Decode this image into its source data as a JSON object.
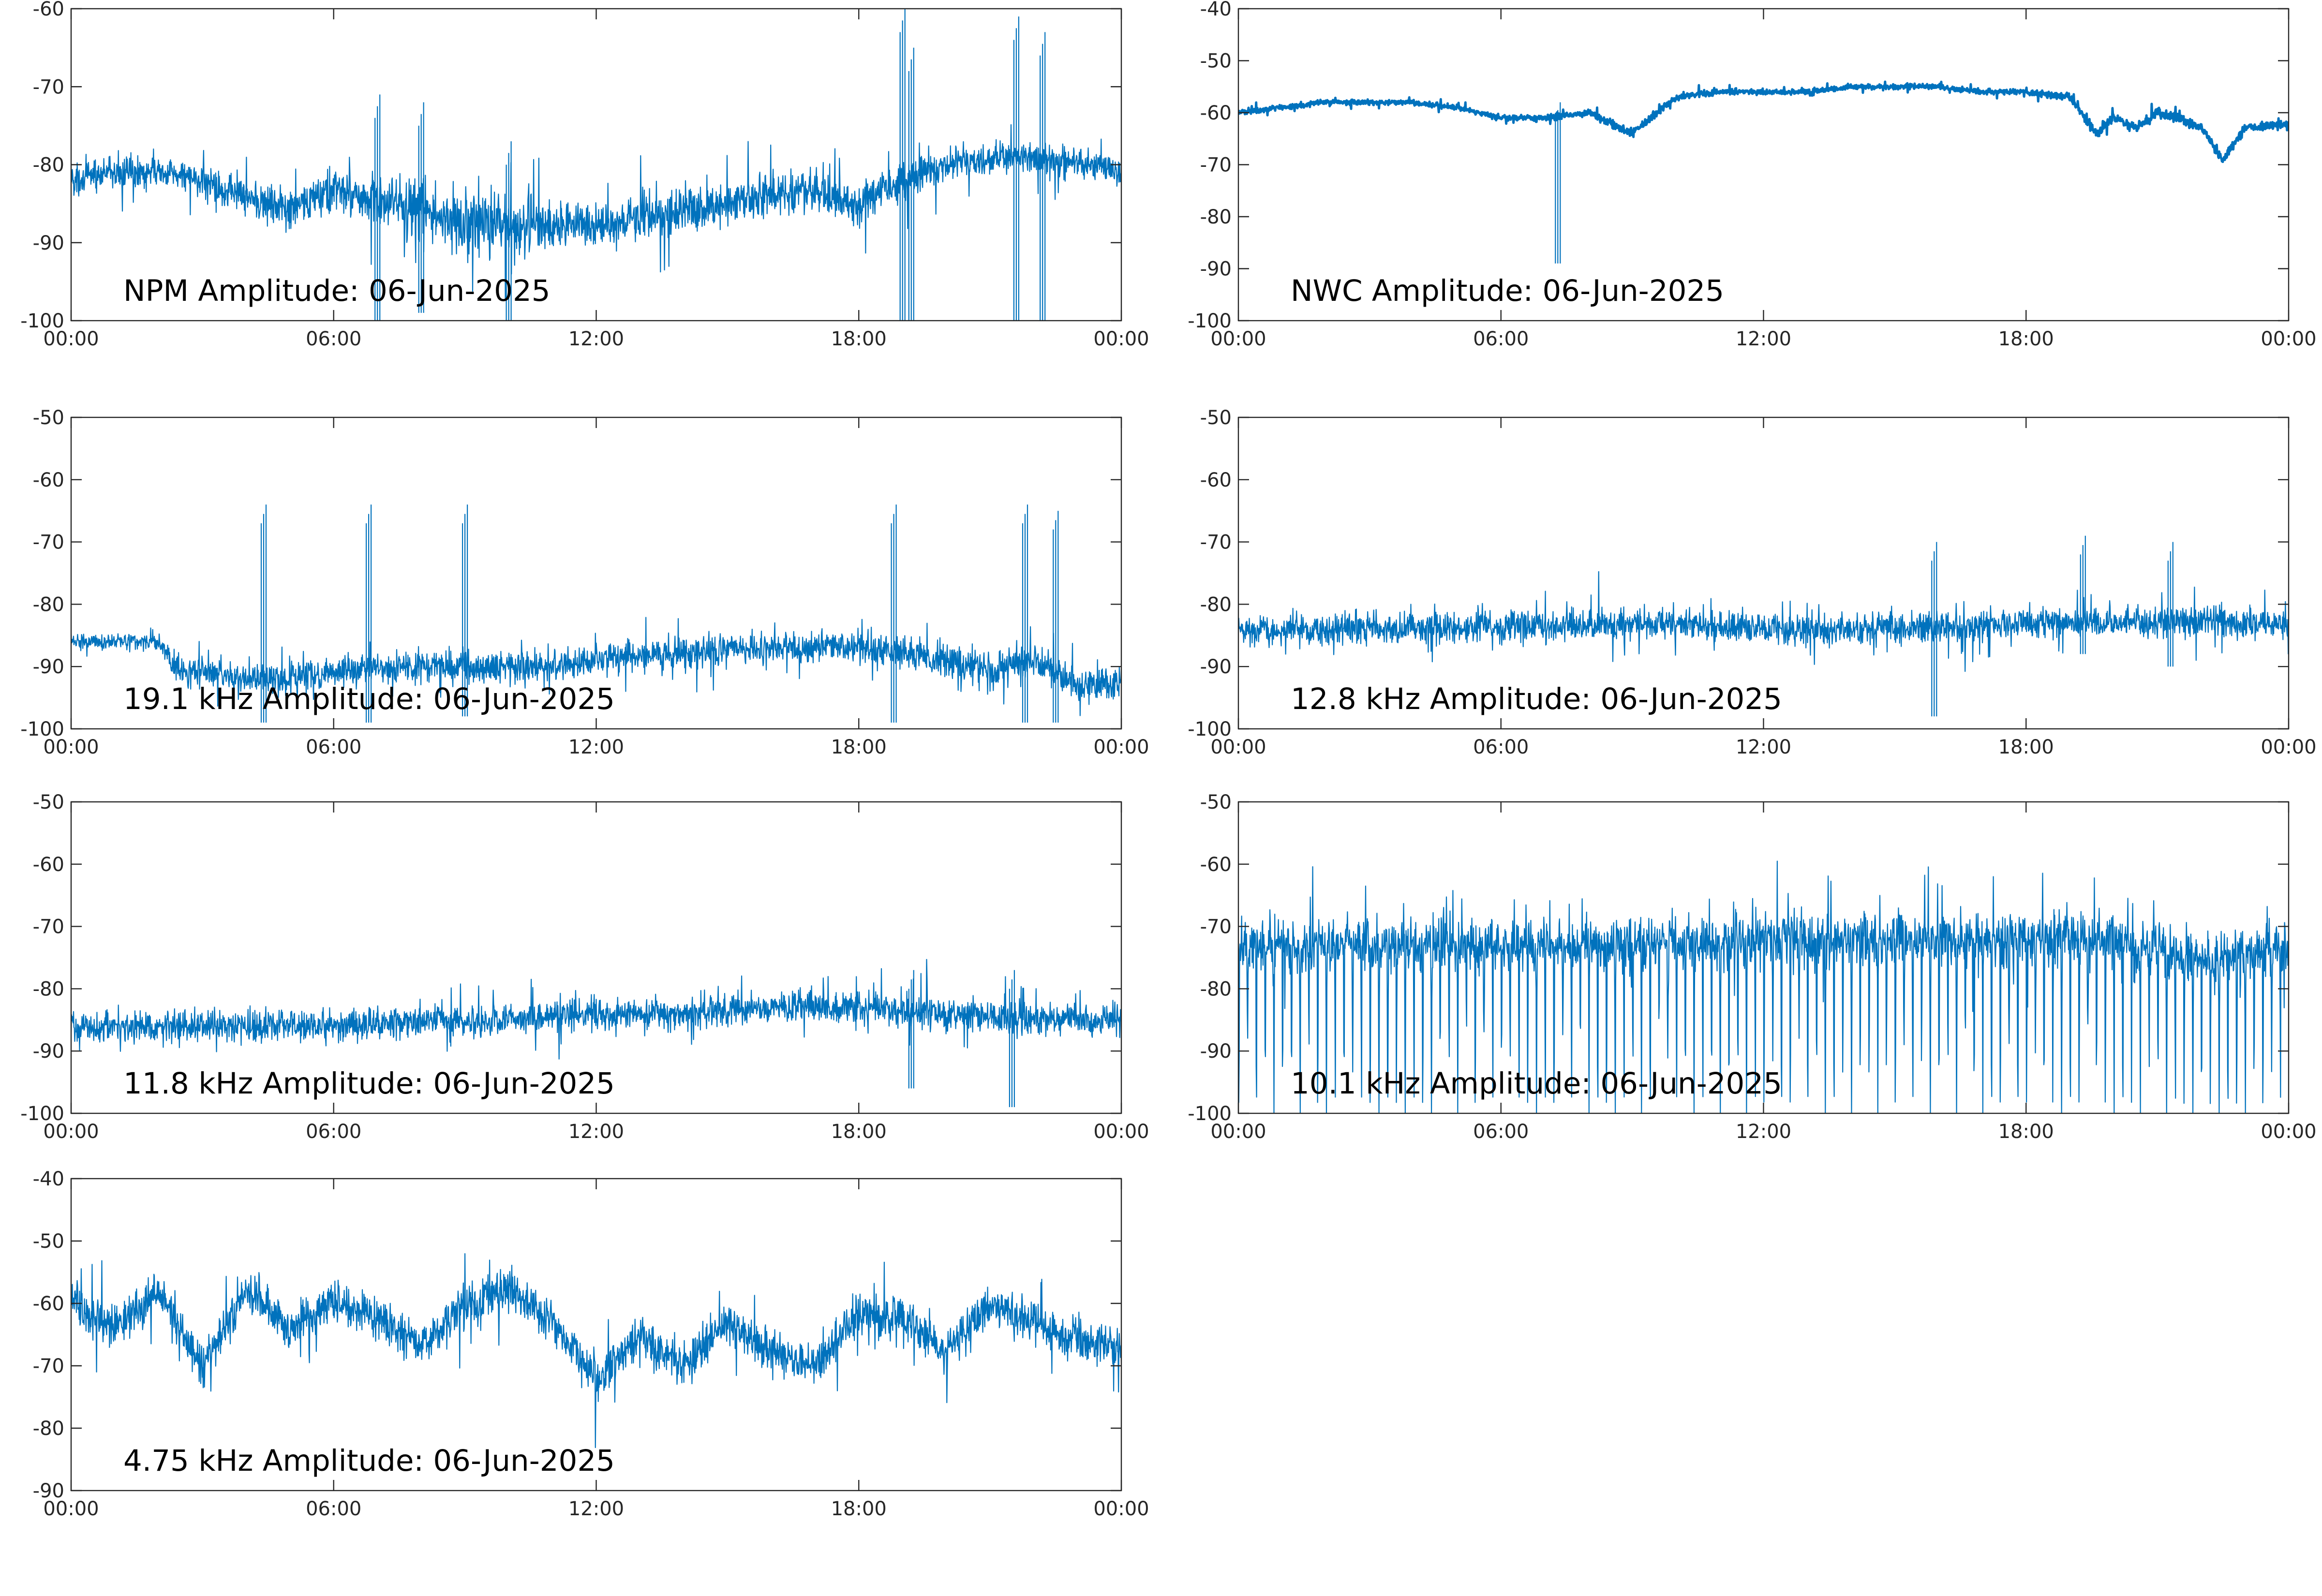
{
  "chart_data": [
    {
      "type": "line",
      "title": "NPM Amplitude: 06-Jun-2025",
      "ylim": [
        -100,
        -60
      ],
      "yticks": [
        -100,
        -90,
        -80,
        -70,
        -60
      ],
      "ytick_labels": [
        "-100",
        "-90",
        "-80",
        "-70",
        "-60"
      ],
      "xlim": [
        "00:00",
        "24:00"
      ],
      "xtick_labels": [
        "00:00",
        "06:00",
        "12:00",
        "18:00",
        "00:00"
      ],
      "grid": false,
      "series_color": "#0072BD",
      "series": [
        {
          "x": [
            "00:00",
            "01:00",
            "02:00",
            "03:00",
            "04:00",
            "05:00",
            "06:00",
            "07:00",
            "08:00",
            "09:00",
            "10:00",
            "11:00",
            "12:00",
            "13:00",
            "14:00",
            "15:00",
            "16:00",
            "17:00",
            "18:00",
            "19:00",
            "20:00",
            "21:00",
            "22:00",
            "23:00",
            "24:00"
          ],
          "y": [
            -82,
            -81,
            -81,
            -82,
            -84,
            -86,
            -83,
            -85,
            -86,
            -87,
            -88,
            -88,
            -88,
            -87,
            -86,
            -85,
            -84,
            -83,
            -85,
            -82,
            -80,
            -79,
            -79,
            -80,
            -81
          ],
          "spread": [
            2.5,
            2.5,
            2.5,
            2.5,
            3,
            3,
            3.5,
            4,
            4.5,
            4.5,
            4.5,
            4,
            3.5,
            3.5,
            3.5,
            3.5,
            3,
            3,
            3.5,
            3,
            2.5,
            2.5,
            2.5,
            2.5,
            2.5
          ]
        }
      ],
      "spikes": [
        {
          "x": "07:00",
          "low": -100,
          "high": -74
        },
        {
          "x": "08:00",
          "low": -99,
          "high": -75
        },
        {
          "x": "10:00",
          "low": -100,
          "high": -80
        },
        {
          "x": "19:00",
          "low": -100,
          "high": -63
        },
        {
          "x": "19:12",
          "low": -100,
          "high": -68
        },
        {
          "x": "21:36",
          "low": -100,
          "high": -64
        },
        {
          "x": "22:12",
          "low": -100,
          "high": -66
        }
      ]
    },
    {
      "type": "line",
      "title": "NWC Amplitude: 06-Jun-2025",
      "ylim": [
        -100,
        -40
      ],
      "yticks": [
        -100,
        -90,
        -80,
        -70,
        -60,
        -50,
        -40
      ],
      "ytick_labels": [
        "-100",
        "-90",
        "-80",
        "-70",
        "-60",
        "-50",
        "-40"
      ],
      "xlim": [
        "00:00",
        "24:00"
      ],
      "xtick_labels": [
        "00:00",
        "06:00",
        "12:00",
        "18:00",
        "00:00"
      ],
      "grid": false,
      "series_color": "#0072BD",
      "series": [
        {
          "x": [
            "00:00",
            "01:00",
            "02:00",
            "03:00",
            "04:00",
            "05:00",
            "06:00",
            "07:00",
            "08:00",
            "09:00",
            "10:00",
            "11:00",
            "12:00",
            "13:00",
            "14:00",
            "15:00",
            "16:00",
            "17:00",
            "18:00",
            "19:00",
            "19:36",
            "20:00",
            "20:30",
            "21:00",
            "21:30",
            "22:00",
            "22:30",
            "23:00",
            "24:00"
          ],
          "y": [
            -60,
            -59,
            -58,
            -58,
            -58,
            -59,
            -61,
            -61,
            -60,
            -64,
            -57,
            -56,
            -56,
            -56,
            -55,
            -55,
            -55,
            -56,
            -56,
            -57,
            -64,
            -61,
            -63,
            -60,
            -61,
            -63,
            -69,
            -63,
            -62
          ],
          "spread": [
            0.6,
            0.6,
            0.6,
            0.6,
            0.6,
            0.6,
            0.7,
            0.7,
            0.8,
            1,
            0.7,
            0.6,
            0.6,
            0.6,
            0.6,
            0.6,
            0.6,
            0.6,
            0.6,
            0.8,
            1.2,
            1.2,
            1.2,
            1.2,
            1.2,
            1.2,
            1.2,
            1,
            0.8
          ]
        }
      ],
      "spikes": [
        {
          "x": "07:18",
          "low": -89,
          "high": -61
        }
      ]
    },
    {
      "type": "line",
      "title": "19.1 kHz Amplitude: 06-Jun-2025",
      "ylim": [
        -100,
        -50
      ],
      "yticks": [
        -100,
        -90,
        -80,
        -70,
        -60,
        -50
      ],
      "ytick_labels": [
        "-100",
        "-90",
        "-80",
        "-70",
        "-60",
        "-50"
      ],
      "xlim": [
        "00:00",
        "24:00"
      ],
      "xtick_labels": [
        "00:00",
        "06:00",
        "12:00",
        "18:00",
        "00:00"
      ],
      "grid": false,
      "series_color": "#0072BD",
      "series": [
        {
          "x": [
            "00:00",
            "01:00",
            "02:00",
            "02:30",
            "03:00",
            "04:00",
            "05:00",
            "06:00",
            "07:00",
            "08:00",
            "09:00",
            "10:00",
            "11:00",
            "12:00",
            "13:00",
            "14:00",
            "15:00",
            "16:00",
            "17:00",
            "18:00",
            "19:00",
            "20:00",
            "21:00",
            "22:00",
            "23:00",
            "24:00"
          ],
          "y": [
            -86,
            -86,
            -86,
            -91,
            -91,
            -92,
            -92,
            -91,
            -90,
            -90,
            -90,
            -90,
            -90,
            -89,
            -88,
            -88,
            -87,
            -87,
            -87,
            -87,
            -88,
            -89,
            -91,
            -89,
            -93,
            -93
          ],
          "spread": [
            1.5,
            1.5,
            1.5,
            3,
            3,
            3,
            3,
            3,
            3,
            3,
            3,
            3,
            3,
            3,
            3,
            3,
            3,
            3,
            3,
            3,
            3.5,
            3.5,
            3.5,
            3.5,
            3.5,
            3.5
          ]
        }
      ],
      "spikes": [
        {
          "x": "04:24",
          "low": -99,
          "high": -67
        },
        {
          "x": "06:48",
          "low": -99,
          "high": -67
        },
        {
          "x": "09:00",
          "low": -98,
          "high": -67
        },
        {
          "x": "18:48",
          "low": -99,
          "high": -67
        },
        {
          "x": "21:48",
          "low": -99,
          "high": -67
        },
        {
          "x": "22:30",
          "low": -99,
          "high": -68
        }
      ]
    },
    {
      "type": "line",
      "title": "12.8 kHz Amplitude: 06-Jun-2025",
      "ylim": [
        -100,
        -50
      ],
      "yticks": [
        -100,
        -90,
        -80,
        -70,
        -60,
        -50
      ],
      "ytick_labels": [
        "-100",
        "-90",
        "-80",
        "-70",
        "-60",
        "-50"
      ],
      "xlim": [
        "00:00",
        "24:00"
      ],
      "xtick_labels": [
        "00:00",
        "06:00",
        "12:00",
        "18:00",
        "00:00"
      ],
      "grid": false,
      "series_color": "#0072BD",
      "series": [
        {
          "x": [
            "00:00",
            "03:00",
            "06:00",
            "09:00",
            "12:00",
            "15:00",
            "18:00",
            "21:00",
            "24:00"
          ],
          "y": [
            -84,
            -84,
            -84,
            -83,
            -84,
            -84,
            -83,
            -83,
            -83
          ],
          "spread": [
            3,
            3,
            3,
            3,
            3,
            3,
            3,
            3,
            3
          ]
        }
      ],
      "spikes": [
        {
          "x": "15:54",
          "low": -98,
          "high": -73
        },
        {
          "x": "19:18",
          "low": -88,
          "high": -72
        },
        {
          "x": "21:18",
          "low": -90,
          "high": -73
        }
      ]
    },
    {
      "type": "line",
      "title": "11.8 kHz Amplitude: 06-Jun-2025",
      "ylim": [
        -100,
        -50
      ],
      "yticks": [
        -100,
        -90,
        -80,
        -70,
        -60,
        -50
      ],
      "ytick_labels": [
        "-100",
        "-90",
        "-80",
        "-70",
        "-60",
        "-50"
      ],
      "xlim": [
        "00:00",
        "24:00"
      ],
      "xtick_labels": [
        "00:00",
        "06:00",
        "12:00",
        "18:00",
        "00:00"
      ],
      "grid": false,
      "series_color": "#0072BD",
      "series": [
        {
          "x": [
            "00:00",
            "02:00",
            "04:00",
            "06:00",
            "08:00",
            "10:00",
            "12:00",
            "14:00",
            "16:00",
            "18:00",
            "20:00",
            "22:00",
            "24:00"
          ],
          "y": [
            -86,
            -86,
            -86,
            -86,
            -85,
            -85,
            -84,
            -84,
            -83,
            -83,
            -84,
            -85,
            -85
          ],
          "spread": [
            3,
            3,
            3,
            3,
            3,
            3,
            3,
            3,
            3,
            3,
            3,
            3,
            3
          ]
        }
      ],
      "spikes": [
        {
          "x": "19:12",
          "low": -96,
          "high": -80
        },
        {
          "x": "21:30",
          "low": -99,
          "high": -80
        }
      ]
    },
    {
      "type": "line",
      "title": "10.1 kHz Amplitude: 06-Jun-2025",
      "ylim": [
        -100,
        -50
      ],
      "yticks": [
        -100,
        -90,
        -80,
        -70,
        -60,
        -50
      ],
      "ytick_labels": [
        "-100",
        "-90",
        "-80",
        "-70",
        "-60",
        "-50"
      ],
      "xlim": [
        "00:00",
        "24:00"
      ],
      "xtick_labels": [
        "00:00",
        "06:00",
        "12:00",
        "18:00",
        "00:00"
      ],
      "grid": false,
      "series_color": "#0072BD",
      "series": [
        {
          "x": [
            "00:00",
            "04:00",
            "08:00",
            "12:00",
            "16:00",
            "20:00",
            "22:00",
            "24:00"
          ],
          "y": [
            -73,
            -73,
            -73,
            -72,
            -72,
            -72,
            -76,
            -73
          ],
          "spread": [
            5,
            5,
            5,
            5,
            5,
            5,
            5,
            5
          ]
        }
      ],
      "dips": {
        "period_minutes": 12,
        "low": -100,
        "note_low": -95
      }
    },
    {
      "type": "line",
      "title": "4.75 kHz Amplitude: 06-Jun-2025",
      "ylim": [
        -90,
        -40
      ],
      "yticks": [
        -90,
        -80,
        -70,
        -60,
        -50,
        -40
      ],
      "ytick_labels": [
        "-90",
        "-80",
        "-70",
        "-60",
        "-50",
        "-40"
      ],
      "xlim": [
        "00:00",
        "24:00"
      ],
      "xtick_labels": [
        "00:00",
        "06:00",
        "12:00",
        "18:00",
        "00:00"
      ],
      "grid": false,
      "series_color": "#0072BD",
      "series": [
        {
          "x": [
            "00:00",
            "01:00",
            "02:00",
            "03:00",
            "04:00",
            "05:00",
            "06:00",
            "07:00",
            "08:00",
            "09:00",
            "10:00",
            "11:00",
            "12:00",
            "13:00",
            "14:00",
            "15:00",
            "16:00",
            "17:00",
            "18:00",
            "19:00",
            "20:00",
            "21:00",
            "22:00",
            "23:00",
            "24:00"
          ],
          "y": [
            -60,
            -64,
            -58,
            -70,
            -58,
            -64,
            -60,
            -62,
            -67,
            -60,
            -58,
            -63,
            -72,
            -65,
            -70,
            -63,
            -68,
            -70,
            -62,
            -62,
            -68,
            -60,
            -63,
            -66,
            -67
          ],
          "spread": [
            4,
            4,
            4,
            4,
            4,
            4,
            4,
            4,
            4,
            4,
            4,
            4,
            4,
            4,
            4,
            4,
            4,
            4,
            4,
            4,
            4,
            4,
            4,
            4,
            4
          ]
        }
      ]
    }
  ]
}
